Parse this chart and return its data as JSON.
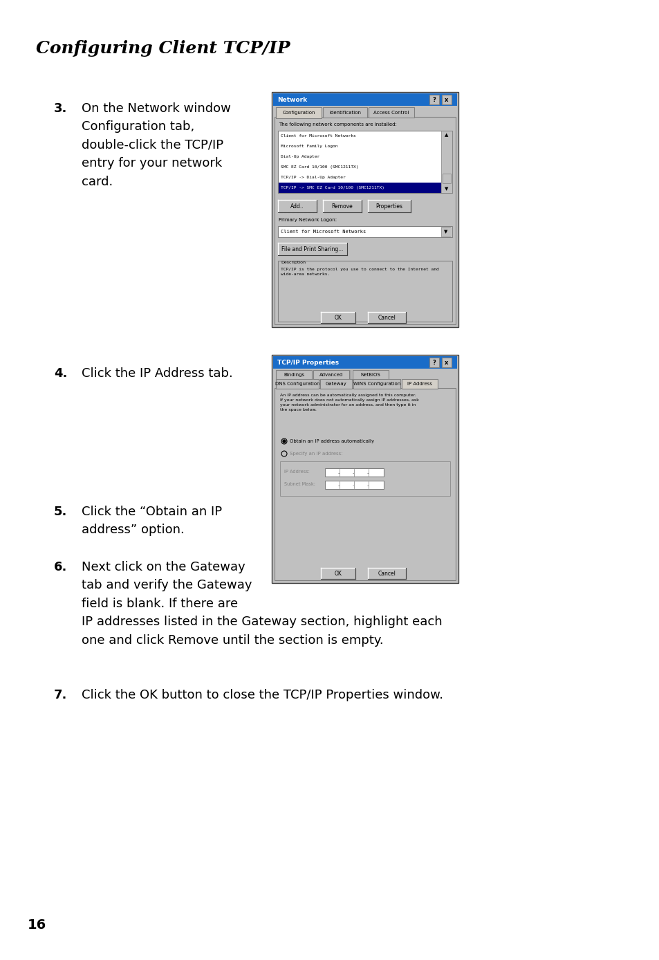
{
  "title": "Configuring Client TCP/IP",
  "background_color": "#ffffff",
  "page_number": "16",
  "step3_text": "On the Network window\nConfiguration tab,\ndouble-click the TCP/IP\nentry for your network\ncard.",
  "step4_text": "Click the IP Address tab.",
  "step5_text": "Click the “Obtain an IP\naddress” option.",
  "step6_text": "Next click on the Gateway\ntab and verify the Gateway\nfield is blank. If there are\nIP addresses listed in the Gateway section, highlight each\none and click Remove until the section is empty.",
  "step7_text": "Click the OK button to close the TCP/IP Properties window.",
  "list_items": [
    "Client for Microsoft Networks",
    "Microsoft Family Logon",
    "Dial-Up Adapter",
    "SMC EZ Card 10/100 (SMC1211TX)",
    "TCP/IP -> Dial-Up Adapter",
    "TCP/IP -> SMC EZ Card 10/100 (SMC1211TX)"
  ],
  "title_color": "#1a6cc8",
  "dialog_bg": "#c0c0c0",
  "listbox_bg": "#ffffff",
  "selected_bg": "#000080",
  "selected_fg": "#ffffff",
  "tab_selected": "#d4d0c8",
  "tab_unselected": "#bfbfbf"
}
